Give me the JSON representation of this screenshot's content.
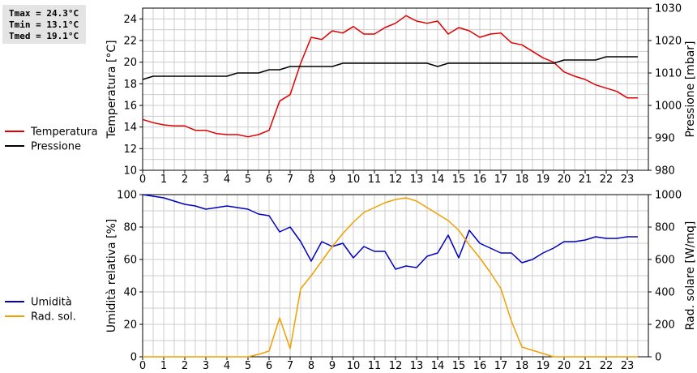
{
  "stats": {
    "tmax": "Tmax = 24.3°C",
    "tmin": "Tmin = 13.1°C",
    "tmed": "Tmed = 19.1°C"
  },
  "colors": {
    "temperatura": "#e00000",
    "pressione": "#000000",
    "umidita": "#0000c0",
    "rad": "#f0a000",
    "grid": "#cccccc"
  },
  "chart_data": [
    {
      "type": "line",
      "x": [
        0,
        0.5,
        1,
        1.5,
        2,
        2.5,
        3,
        3.5,
        4,
        4.5,
        5,
        5.5,
        6,
        6.5,
        7,
        7.5,
        8,
        8.5,
        9,
        9.5,
        10,
        10.5,
        11,
        11.5,
        12,
        12.5,
        13,
        13.5,
        14,
        14.5,
        15,
        15.5,
        16,
        16.5,
        17,
        17.5,
        18,
        18.5,
        19,
        19.5,
        20,
        20.5,
        21,
        21.5,
        22,
        22.5,
        23,
        23.5
      ],
      "xticks": [
        "0",
        "1",
        "2",
        "3",
        "4",
        "5",
        "6",
        "7",
        "8",
        "9",
        "10",
        "11",
        "12",
        "13",
        "14",
        "15",
        "16",
        "17",
        "18",
        "19",
        "20",
        "21",
        "22",
        "23"
      ],
      "xlim": [
        0,
        24
      ],
      "ylabel": "Temperatura [°C]",
      "ylim": [
        10,
        25
      ],
      "yticks": [
        10,
        12,
        14,
        16,
        18,
        20,
        22,
        24
      ],
      "y2label": "Pressione [mbar]",
      "y2lim": [
        980,
        1030
      ],
      "y2ticks": [
        980,
        990,
        1000,
        1010,
        1020,
        1030
      ],
      "grid": true,
      "legend": "left",
      "series": [
        {
          "name": "Temperatura",
          "axis": "left",
          "values": [
            14.7,
            14.4,
            14.2,
            14.1,
            14.1,
            13.7,
            13.7,
            13.4,
            13.3,
            13.3,
            13.1,
            13.3,
            13.7,
            16.4,
            17.0,
            19.9,
            22.3,
            22.1,
            22.9,
            22.7,
            23.3,
            22.6,
            22.6,
            23.2,
            23.6,
            24.3,
            23.8,
            23.6,
            23.8,
            22.6,
            23.2,
            22.9,
            22.3,
            22.6,
            22.7,
            21.8,
            21.6,
            21.0,
            20.4,
            20.0,
            19.1,
            18.7,
            18.4,
            17.9,
            17.6,
            17.3,
            16.7,
            16.7
          ]
        },
        {
          "name": "Pressione",
          "axis": "right",
          "values": [
            1008,
            1009,
            1009,
            1009,
            1009,
            1009,
            1009,
            1009,
            1009,
            1010,
            1010,
            1010,
            1011,
            1011,
            1012,
            1012,
            1012,
            1012,
            1012,
            1013,
            1013,
            1013,
            1013,
            1013,
            1013,
            1013,
            1013,
            1013,
            1012,
            1013,
            1013,
            1013,
            1013,
            1013,
            1013,
            1013,
            1013,
            1013,
            1013,
            1013,
            1014,
            1014,
            1014,
            1014,
            1015,
            1015,
            1015,
            1015
          ]
        }
      ]
    },
    {
      "type": "line",
      "x": [
        0,
        0.5,
        1,
        1.5,
        2,
        2.5,
        3,
        3.5,
        4,
        4.5,
        5,
        5.5,
        6,
        6.5,
        7,
        7.5,
        8,
        8.5,
        9,
        9.5,
        10,
        10.5,
        11,
        11.5,
        12,
        12.5,
        13,
        13.5,
        14,
        14.5,
        15,
        15.5,
        16,
        16.5,
        17,
        17.5,
        18,
        18.5,
        19,
        19.5,
        20,
        20.5,
        21,
        21.5,
        22,
        22.5,
        23,
        23.5
      ],
      "xticks": [
        "0",
        "1",
        "2",
        "3",
        "4",
        "5",
        "6",
        "7",
        "8",
        "9",
        "10",
        "11",
        "12",
        "13",
        "14",
        "15",
        "16",
        "17",
        "18",
        "19",
        "20",
        "21",
        "22",
        "23"
      ],
      "xlim": [
        0,
        24
      ],
      "ylabel": "Umidità relativa [%]",
      "ylim": [
        0,
        100
      ],
      "yticks": [
        0,
        20,
        40,
        60,
        80,
        100
      ],
      "y2label": "Rad. solare [W/mq]",
      "y2lim": [
        0,
        1000
      ],
      "y2ticks": [
        0,
        200,
        400,
        600,
        800,
        1000
      ],
      "grid": true,
      "legend": "left",
      "series": [
        {
          "name": "Umidità",
          "axis": "left",
          "values": [
            100,
            99,
            98,
            96,
            94,
            93,
            91,
            92,
            93,
            92,
            91,
            88,
            87,
            77,
            80,
            71,
            59,
            71,
            68,
            70,
            61,
            68,
            65,
            65,
            54,
            56,
            55,
            62,
            64,
            75,
            61,
            78,
            70,
            67,
            64,
            64,
            58,
            60,
            64,
            67,
            71,
            71,
            72,
            74,
            73,
            73,
            74,
            74
          ]
        },
        {
          "name": "Rad. sol.",
          "axis": "right",
          "values": [
            0,
            0,
            0,
            0,
            0,
            0,
            0,
            0,
            0,
            0,
            0,
            15,
            35,
            240,
            50,
            420,
            500,
            590,
            680,
            760,
            830,
            890,
            920,
            950,
            970,
            980,
            960,
            920,
            880,
            840,
            780,
            690,
            610,
            520,
            420,
            220,
            60,
            40,
            20,
            0,
            0,
            0,
            0,
            0,
            0,
            0,
            0,
            0
          ]
        }
      ]
    }
  ]
}
